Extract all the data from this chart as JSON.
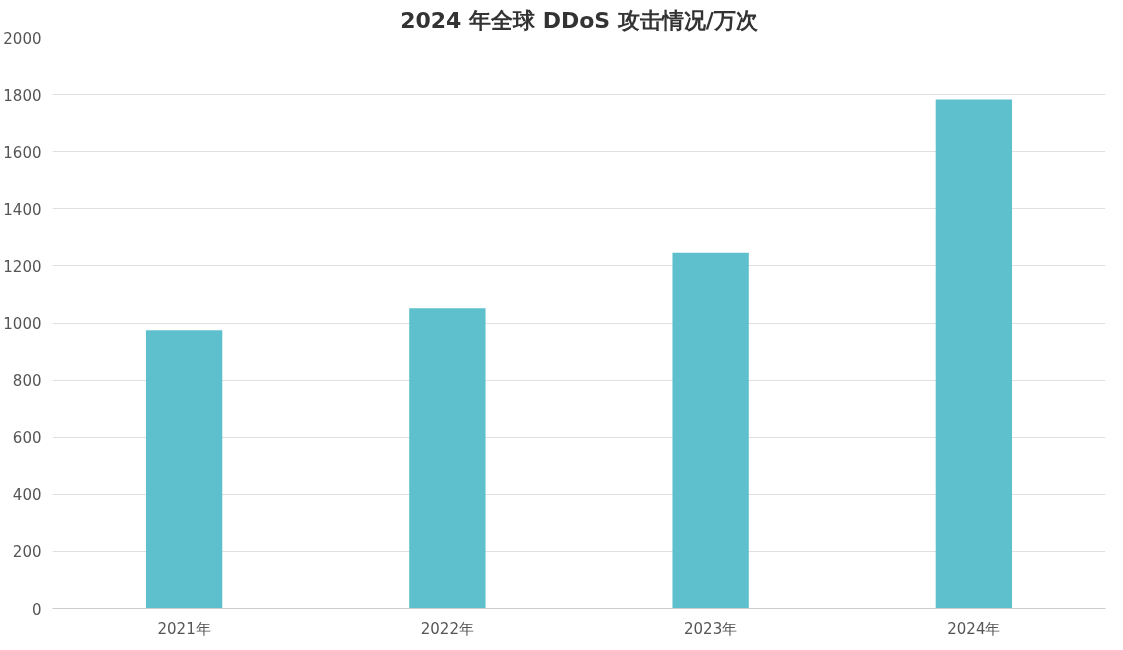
{
  "chart_data": {
    "type": "bar",
    "title": "2024 年全球 DDoS 攻击情况/万次",
    "categories": [
      "2021年",
      "2022年",
      "2023年",
      "2024年"
    ],
    "values": [
      975,
      1052,
      1246,
      1783
    ],
    "color": "#5fc0cd",
    "ylim": [
      0,
      2000
    ],
    "yticks": [
      0,
      200,
      400,
      600,
      800,
      1000,
      1200,
      1400,
      1600,
      1800,
      2000
    ],
    "grid": "y"
  }
}
